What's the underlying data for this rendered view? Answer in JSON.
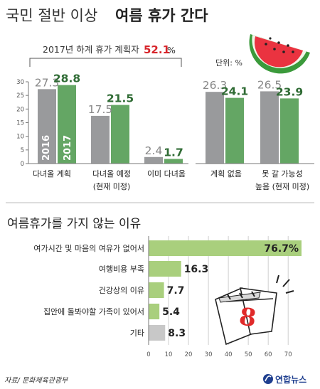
{
  "header": {
    "title_light": "국민 절반 이상",
    "title_bold": "여름 휴가 간다",
    "plan_label": "2017년 하계 휴가 계획자",
    "plan_value": "52.1",
    "plan_unit": "%",
    "unit_label": "단위: %"
  },
  "section2": {
    "title": "여름휴가를 가지 않는 이유"
  },
  "footer": {
    "source": "자료/ 문화체육관광부",
    "logo": "연합뉴스"
  },
  "colors": {
    "gray": "#999a9c",
    "green": "#64a664",
    "light_green": "#a9cf7d",
    "light_gray": "#c8c8c8",
    "accent_red": "#d7252b"
  },
  "chart_data": [
    {
      "type": "bar",
      "categories": [
        "다녀올 계획",
        "다녀올 예정",
        "이미 다녀옴"
      ],
      "category_sub": [
        "",
        "(현재 미정)",
        ""
      ],
      "series": [
        {
          "name": "2016",
          "values": [
            27.3,
            17.5,
            2.4
          ]
        },
        {
          "name": "2017",
          "values": [
            28.8,
            21.5,
            1.7
          ]
        }
      ],
      "labels_2016": [
        "27.3",
        "17.5",
        "2.4"
      ],
      "labels_2017": [
        "28.8",
        "21.5",
        "1.7"
      ],
      "yticks": [
        "0",
        "5",
        "10",
        "15",
        "20",
        "25",
        "30"
      ],
      "ylim": [
        0,
        30
      ],
      "unit": "%"
    },
    {
      "type": "bar",
      "categories": [
        "계획 없음",
        "못 갈 가능성"
      ],
      "category_sub": [
        "",
        "높음 (현재 미정)"
      ],
      "series": [
        {
          "name": "2016",
          "values": [
            26.3,
            26.5
          ]
        },
        {
          "name": "2017",
          "values": [
            24.1,
            23.9
          ]
        }
      ],
      "labels_2016": [
        "26.3",
        "26.5"
      ],
      "labels_2017": [
        "24.1",
        "23.9"
      ],
      "ylim": [
        0,
        30
      ],
      "unit": "%"
    },
    {
      "type": "bar",
      "orientation": "horizontal",
      "categories": [
        "여가시간 및 마음의 여유가 없어서",
        "여행비용 부족",
        "건강상의 이유",
        "집안에 돌봐야할 가족이 있어서",
        "기타"
      ],
      "values": [
        76.7,
        16.3,
        7.7,
        5.4,
        8.3
      ],
      "labels": [
        "76.7%",
        "16.3",
        "7.7",
        "5.4",
        "8.3"
      ],
      "xticks": [
        "0",
        "10",
        "20",
        "30",
        "40",
        "50",
        "60",
        "70"
      ],
      "xlim": [
        0,
        76.7
      ]
    }
  ]
}
